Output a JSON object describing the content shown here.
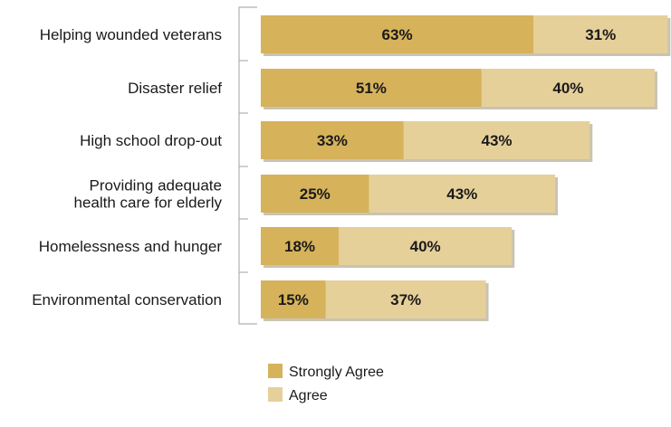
{
  "chart_data": {
    "type": "bar",
    "orientation": "horizontal",
    "stacked": true,
    "categories": [
      [
        "Helping wounded veterans"
      ],
      [
        "Disaster relief"
      ],
      [
        "High school drop-out"
      ],
      [
        "Providing adequate",
        "health care for elderly"
      ],
      [
        "Homelessness and hunger"
      ],
      [
        "Environmental conservation"
      ]
    ],
    "series": [
      {
        "name": "Strongly Agree",
        "color": "#D6B25A",
        "values": [
          63,
          51,
          33,
          25,
          18,
          15
        ],
        "labels": [
          "63%",
          "51%",
          "33%",
          "25%",
          "18%",
          "15%"
        ]
      },
      {
        "name": "Agree",
        "color": "#E6D09A",
        "values": [
          31,
          40,
          43,
          43,
          40,
          37
        ],
        "labels": [
          "31%",
          "40%",
          "43%",
          "43%",
          "40%",
          "37%"
        ]
      }
    ],
    "legend_position": "bottom-center",
    "grid": false
  }
}
